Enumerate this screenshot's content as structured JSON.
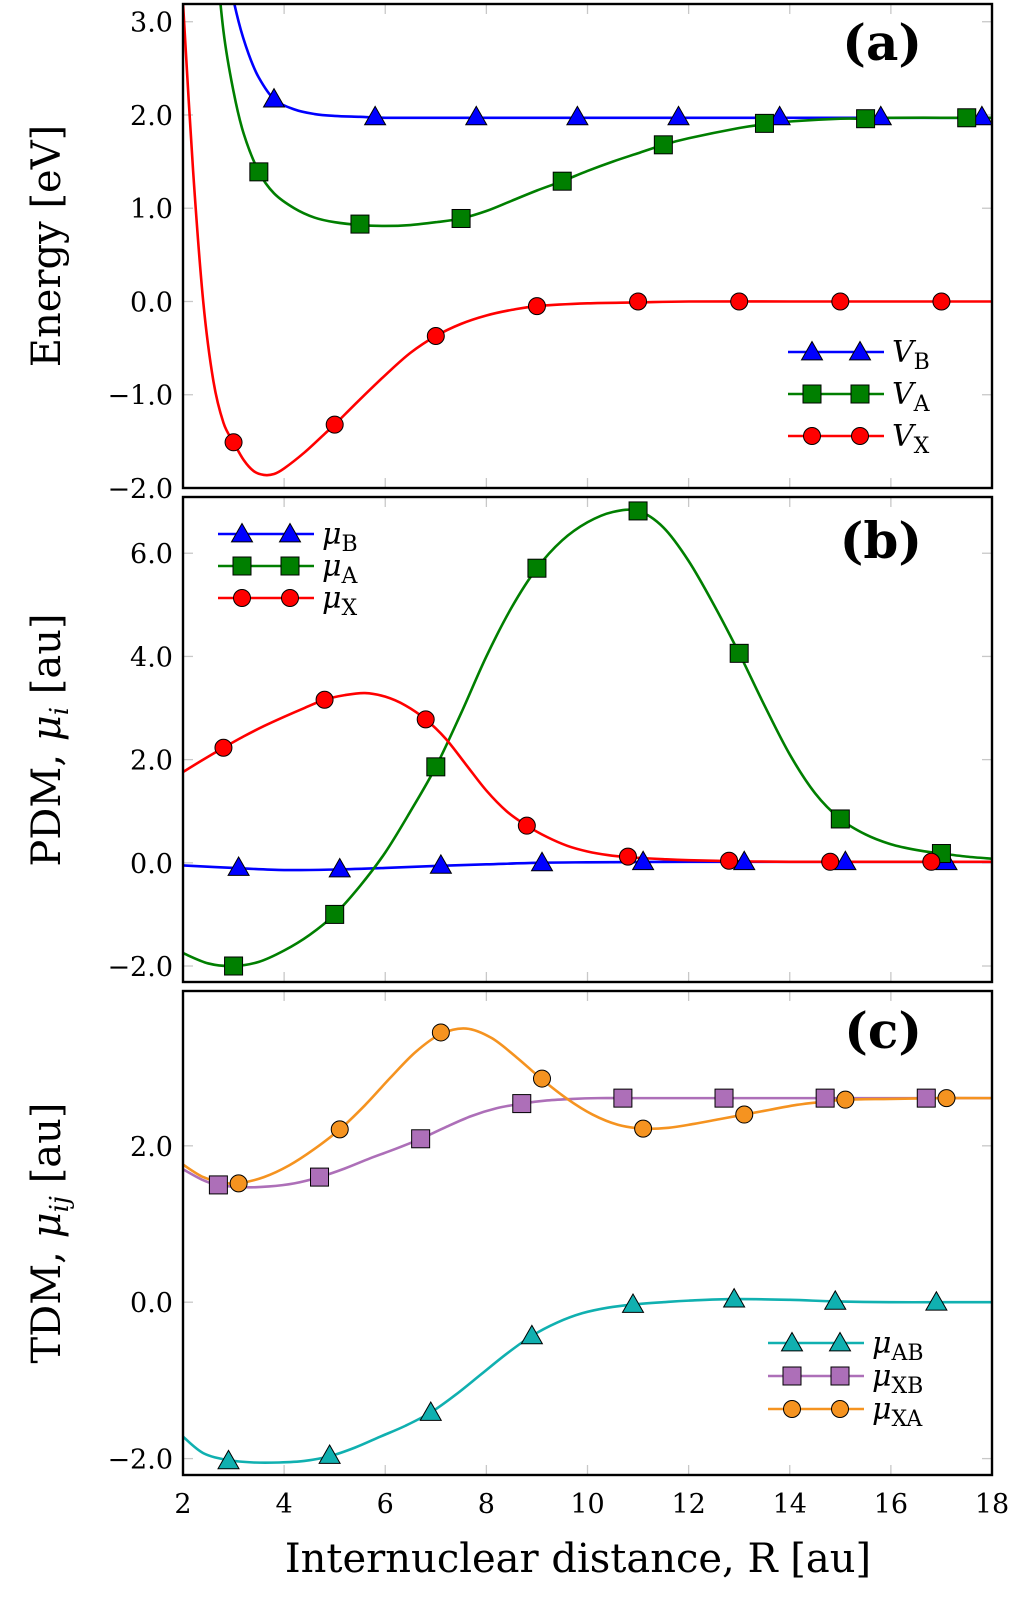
{
  "chart_data": [
    {
      "type": "line",
      "panel_label": "(a)",
      "title": "",
      "xlabel": "",
      "ylabel": "Energy [eV]",
      "xlim": [
        2,
        18
      ],
      "ylim": [
        -2.0,
        3.19
      ],
      "xticks": [
        2,
        4,
        6,
        8,
        10,
        12,
        14,
        16,
        18
      ],
      "yticks": [
        -2.0,
        -1.0,
        0.0,
        1.0,
        2.0,
        3.0
      ],
      "ytick_labels": [
        "−2.0",
        "−1.0",
        "0.0",
        "1.0",
        "2.0",
        "3.0"
      ],
      "grid": false,
      "legend_position": "bottom-right",
      "series": [
        {
          "name": "V_B",
          "legend_main": "V",
          "legend_sub": "B",
          "color": "#0000ff",
          "marker": "triangle",
          "curve": {
            "x": [
              2.7,
              2.9,
              3.1,
              3.3,
              3.5,
              3.8,
              4.2,
              4.6,
              5.0,
              5.5,
              6.0,
              7.0,
              8.0,
              10.0,
              12.0,
              14.0,
              16.0,
              18.0
            ],
            "y": [
              4.2,
              3.5,
              3.0,
              2.65,
              2.4,
              2.17,
              2.06,
              2.01,
              1.99,
              1.98,
              1.97,
              1.97,
              1.97,
              1.97,
              1.97,
              1.97,
              1.97,
              1.97
            ]
          },
          "markers": {
            "x": [
              3.8,
              5.8,
              7.8,
              9.8,
              11.8,
              13.8,
              15.8,
              17.8
            ],
            "y": [
              2.17,
              1.98,
              1.98,
              1.98,
              1.98,
              1.98,
              1.98,
              1.98
            ]
          }
        },
        {
          "name": "V_A",
          "legend_main": "V",
          "legend_sub": "A",
          "color": "#007f00",
          "marker": "square",
          "curve": {
            "x": [
              2.6,
              2.8,
              3.0,
              3.2,
              3.5,
              3.8,
              4.2,
              4.6,
              5.0,
              5.5,
              6.0,
              6.5,
              7.0,
              7.5,
              8.0,
              8.5,
              9.0,
              9.5,
              10.0,
              10.5,
              11.0,
              11.5,
              12.0,
              13.0,
              13.5,
              14.0,
              15.0,
              15.5,
              16.0,
              17.0,
              18.0
            ],
            "y": [
              4.0,
              2.9,
              2.25,
              1.8,
              1.39,
              1.16,
              1.0,
              0.9,
              0.85,
              0.82,
              0.81,
              0.82,
              0.85,
              0.89,
              0.97,
              1.08,
              1.19,
              1.29,
              1.4,
              1.5,
              1.59,
              1.68,
              1.75,
              1.86,
              1.9,
              1.93,
              1.96,
              1.96,
              1.97,
              1.97,
              1.97
            ]
          },
          "markers": {
            "x": [
              3.5,
              5.5,
              7.5,
              9.5,
              11.5,
              13.5,
              15.5,
              17.5
            ],
            "y": [
              1.39,
              0.83,
              0.89,
              1.29,
              1.68,
              1.91,
              1.96,
              1.97
            ]
          }
        },
        {
          "name": "V_X",
          "legend_main": "V",
          "legend_sub": "X",
          "color": "#ff0000",
          "marker": "circle",
          "curve": {
            "x": [
              2.0,
              2.2,
              2.4,
              2.6,
              2.8,
              3.0,
              3.2,
              3.4,
              3.6,
              3.8,
              4.0,
              4.4,
              4.8,
              5.0,
              5.5,
              6.0,
              6.5,
              7.0,
              7.5,
              8.0,
              8.5,
              9.0,
              10.0,
              11.0,
              12.0,
              14.0,
              16.0,
              18.0
            ],
            "y": [
              3.2,
              1.4,
              0.0,
              -0.85,
              -1.3,
              -1.51,
              -1.7,
              -1.82,
              -1.86,
              -1.85,
              -1.79,
              -1.62,
              -1.42,
              -1.32,
              -1.05,
              -0.79,
              -0.55,
              -0.37,
              -0.24,
              -0.15,
              -0.09,
              -0.05,
              -0.02,
              -0.01,
              0.0,
              0.0,
              0.0,
              0.0
            ]
          },
          "markers": {
            "x": [
              3.0,
              5.0,
              7.0,
              9.0,
              11.0,
              13.0,
              15.0,
              17.0
            ],
            "y": [
              -1.51,
              -1.32,
              -0.37,
              -0.05,
              0.0,
              0.0,
              0.0,
              0.0
            ]
          }
        }
      ]
    },
    {
      "type": "line",
      "panel_label": "(b)",
      "title": "",
      "xlabel": "",
      "ylabel": "PDM, μ_i [au]",
      "ylabel_main": "PDM, ",
      "ylabel_mu": "μ",
      "ylabel_sub": "i",
      "ylabel_unit": " [au]",
      "xlim": [
        2,
        18
      ],
      "ylim": [
        -2.31,
        7.09
      ],
      "xticks": [
        2,
        4,
        6,
        8,
        10,
        12,
        14,
        16,
        18
      ],
      "yticks": [
        -2.0,
        0.0,
        2.0,
        4.0,
        6.0
      ],
      "ytick_labels": [
        "−2.0",
        "0.0",
        "2.0",
        "4.0",
        "6.0"
      ],
      "grid": false,
      "legend_position": "top-left",
      "series": [
        {
          "name": "mu_B",
          "legend_main": "μ",
          "legend_sub": "B",
          "color": "#0000ff",
          "marker": "triangle",
          "curve": {
            "x": [
              2.0,
              3.0,
              4.0,
              5.0,
              6.0,
              7.0,
              8.0,
              9.0,
              10.0,
              12.0,
              14.0,
              16.0,
              18.0
            ],
            "y": [
              -0.05,
              -0.1,
              -0.14,
              -0.13,
              -0.1,
              -0.06,
              -0.03,
              0.0,
              0.01,
              0.02,
              0.02,
              0.02,
              0.02
            ]
          },
          "markers": {
            "x": [
              3.1,
              5.1,
              7.1,
              9.1,
              11.1,
              13.1,
              15.1,
              17.1
            ],
            "y": [
              -0.09,
              -0.12,
              -0.05,
              0.0,
              0.02,
              0.02,
              0.02,
              0.02
            ]
          }
        },
        {
          "name": "mu_A",
          "legend_main": "μ",
          "legend_sub": "A",
          "color": "#007f00",
          "marker": "square",
          "curve": {
            "x": [
              2.0,
              2.5,
              3.0,
              3.5,
              4.0,
              4.5,
              5.0,
              5.5,
              6.0,
              6.5,
              7.0,
              7.5,
              8.0,
              8.5,
              9.0,
              9.5,
              10.0,
              10.5,
              11.0,
              11.5,
              12.0,
              12.5,
              13.0,
              13.5,
              14.0,
              14.5,
              15.0,
              15.5,
              16.0,
              16.5,
              17.0,
              17.5,
              18.0
            ],
            "y": [
              -1.75,
              -1.95,
              -2.0,
              -1.92,
              -1.7,
              -1.4,
              -1.0,
              -0.45,
              0.2,
              1.0,
              1.86,
              2.9,
              4.0,
              4.95,
              5.71,
              6.25,
              6.6,
              6.8,
              6.82,
              6.5,
              5.85,
              5.0,
              4.06,
              3.05,
              2.1,
              1.35,
              0.85,
              0.55,
              0.36,
              0.25,
              0.18,
              0.12,
              0.08
            ]
          },
          "markers": {
            "x": [
              3.0,
              5.0,
              7.0,
              9.0,
              11.0,
              13.0,
              15.0,
              17.0
            ],
            "y": [
              -2.0,
              -1.0,
              1.86,
              5.71,
              6.82,
              4.06,
              0.85,
              0.18
            ]
          }
        },
        {
          "name": "mu_X",
          "legend_main": "μ",
          "legend_sub": "X",
          "color": "#ff0000",
          "marker": "circle",
          "curve": {
            "x": [
              2.0,
              2.4,
              2.8,
              3.2,
              3.6,
              4.0,
              4.4,
              4.8,
              5.2,
              5.6,
              6.0,
              6.4,
              6.8,
              7.2,
              7.6,
              8.0,
              8.4,
              8.8,
              9.2,
              9.6,
              10.0,
              10.4,
              10.8,
              11.5,
              12.0,
              13.0,
              14.0,
              16.0,
              18.0
            ],
            "y": [
              1.76,
              2.0,
              2.23,
              2.45,
              2.65,
              2.83,
              3.0,
              3.16,
              3.25,
              3.29,
              3.22,
              3.05,
              2.78,
              2.4,
              1.9,
              1.4,
              1.0,
              0.72,
              0.5,
              0.33,
              0.22,
              0.15,
              0.11,
              0.07,
              0.05,
              0.03,
              0.02,
              0.02,
              0.02
            ]
          },
          "markers": {
            "x": [
              2.8,
              4.8,
              6.8,
              8.8,
              10.8,
              12.8,
              14.8,
              16.8
            ],
            "y": [
              2.23,
              3.16,
              2.78,
              0.72,
              0.12,
              0.04,
              0.02,
              0.02
            ]
          }
        }
      ]
    },
    {
      "type": "line",
      "panel_label": "(c)",
      "title": "",
      "xlabel": "Internuclear distance, R [au]",
      "ylabel": "TDM, μ_ij [au]",
      "ylabel_main": "TDM, ",
      "ylabel_mu": "μ",
      "ylabel_sub": "ij",
      "ylabel_unit": " [au]",
      "xlim": [
        2,
        18
      ],
      "ylim": [
        -2.21,
        3.98
      ],
      "xticks": [
        2,
        4,
        6,
        8,
        10,
        12,
        14,
        16,
        18
      ],
      "xtick_labels": [
        "2",
        "4",
        "6",
        "8",
        "10",
        "12",
        "14",
        "16",
        "18"
      ],
      "yticks": [
        -2.0,
        0.0,
        2.0
      ],
      "ytick_labels": [
        "−2.0",
        "0.0",
        "2.0"
      ],
      "grid": false,
      "legend_position": "bottom-right",
      "series": [
        {
          "name": "mu_AB",
          "legend_main": "μ",
          "legend_sub": "AB",
          "color": "#10b0b0",
          "marker": "triangle",
          "curve": {
            "x": [
              2.0,
              2.4,
              2.9,
              3.4,
              3.9,
              4.4,
              4.9,
              5.4,
              5.9,
              6.4,
              6.9,
              7.4,
              7.9,
              8.4,
              8.9,
              9.4,
              9.9,
              10.4,
              10.9,
              11.5,
              12.0,
              12.9,
              14.0,
              14.9,
              16.0,
              16.9,
              18.0
            ],
            "y": [
              -1.72,
              -1.93,
              -2.02,
              -2.05,
              -2.05,
              -2.03,
              -1.97,
              -1.86,
              -1.72,
              -1.58,
              -1.41,
              -1.18,
              -0.92,
              -0.66,
              -0.43,
              -0.26,
              -0.14,
              -0.07,
              -0.03,
              0.0,
              0.02,
              0.04,
              0.03,
              0.01,
              0.0,
              0.0,
              0.0
            ]
          },
          "markers": {
            "x": [
              2.9,
              4.9,
              6.9,
              8.9,
              10.9,
              12.9,
              14.9,
              16.9
            ],
            "y": [
              -2.03,
              -1.96,
              -1.41,
              -0.43,
              -0.03,
              0.04,
              0.01,
              0.0
            ]
          }
        },
        {
          "name": "mu_XB",
          "legend_main": "μ",
          "legend_sub": "XB",
          "color": "#ad6fb8",
          "marker": "square",
          "curve": {
            "x": [
              2.0,
              2.4,
              2.7,
              3.2,
              3.7,
              4.2,
              4.7,
              5.2,
              5.7,
              6.2,
              6.7,
              7.2,
              7.7,
              8.2,
              8.7,
              9.2,
              9.7,
              10.2,
              10.7,
              11.5,
              12.7,
              14.0,
              14.7,
              16.0,
              16.7,
              18.0
            ],
            "y": [
              1.7,
              1.56,
              1.5,
              1.47,
              1.48,
              1.52,
              1.6,
              1.71,
              1.84,
              1.96,
              2.09,
              2.24,
              2.38,
              2.48,
              2.54,
              2.58,
              2.6,
              2.61,
              2.61,
              2.61,
              2.61,
              2.61,
              2.61,
              2.61,
              2.61,
              2.61
            ]
          },
          "markers": {
            "x": [
              2.7,
              4.7,
              6.7,
              8.7,
              10.7,
              12.7,
              14.7,
              16.7
            ],
            "y": [
              1.5,
              1.6,
              2.09,
              2.54,
              2.61,
              2.61,
              2.61,
              2.61
            ]
          }
        },
        {
          "name": "mu_XA",
          "legend_main": "μ",
          "legend_sub": "XA",
          "color": "#f59320",
          "marker": "circle",
          "curve": {
            "x": [
              2.0,
              2.4,
              2.8,
              3.1,
              3.6,
              4.1,
              4.6,
              5.1,
              5.6,
              6.1,
              6.6,
              7.1,
              7.6,
              8.1,
              8.6,
              9.1,
              9.6,
              10.1,
              10.6,
              11.1,
              11.6,
              12.1,
              12.6,
              13.1,
              13.6,
              14.1,
              14.6,
              15.1,
              16.0,
              17.1,
              18.0
            ],
            "y": [
              1.76,
              1.6,
              1.53,
              1.52,
              1.6,
              1.75,
              1.96,
              2.21,
              2.52,
              2.87,
              3.2,
              3.43,
              3.5,
              3.38,
              3.13,
              2.85,
              2.6,
              2.4,
              2.27,
              2.22,
              2.23,
              2.28,
              2.34,
              2.4,
              2.46,
              2.52,
              2.56,
              2.59,
              2.6,
              2.61,
              2.61
            ]
          },
          "markers": {
            "x": [
              3.1,
              5.1,
              7.1,
              9.1,
              11.1,
              13.1,
              15.1,
              17.1
            ],
            "y": [
              1.52,
              2.21,
              3.45,
              2.86,
              2.22,
              2.4,
              2.59,
              2.61
            ]
          }
        }
      ]
    }
  ]
}
